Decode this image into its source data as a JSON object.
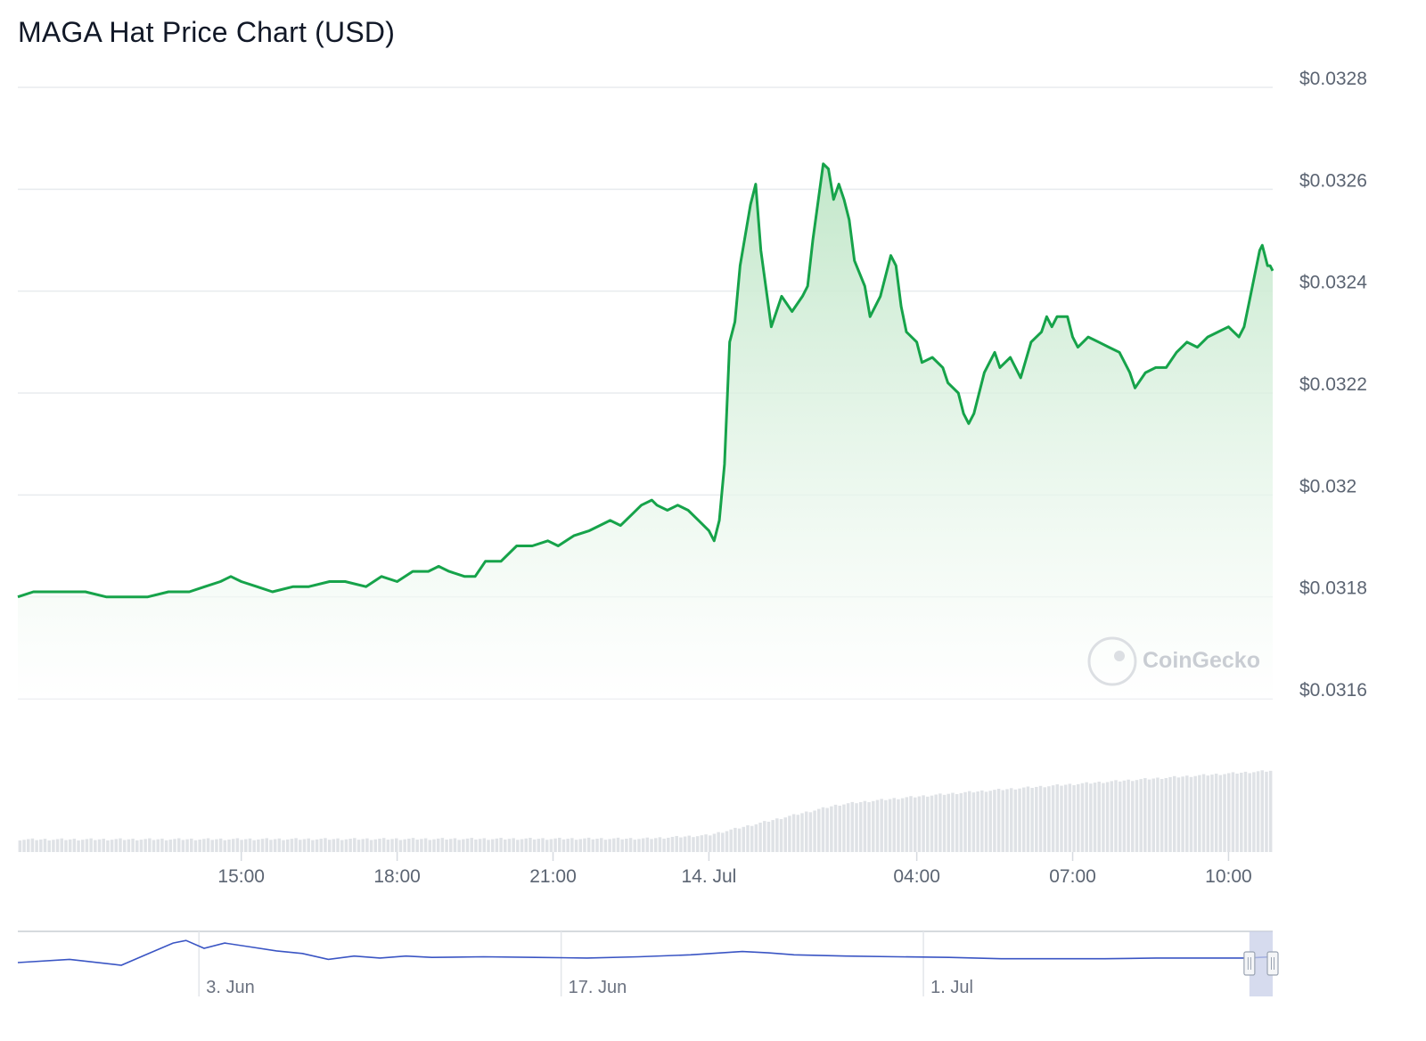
{
  "title": "MAGA Hat Price Chart (USD)",
  "watermark": "CoinGecko",
  "colors": {
    "line": "#16a34a",
    "fill_top": "#bfe6c7",
    "grid": "#e8ebee",
    "volume": "#dfe2e6",
    "navigator_line": "#3a55c4",
    "navigator_handle": "#c8cfe8"
  },
  "chart_data": {
    "type": "area",
    "title": "MAGA Hat Price Chart (USD)",
    "ylabel": "",
    "xlabel": "",
    "ylim": [
      0.0316,
      0.0328
    ],
    "y_tick_labels": [
      "$0.0328",
      "$0.0326",
      "$0.0324",
      "$0.0322",
      "$0.032",
      "$0.0318",
      "$0.0316"
    ],
    "y_ticks": [
      0.0328,
      0.0326,
      0.0324,
      0.0322,
      0.032,
      0.0318,
      0.0316
    ],
    "x_tick_labels": [
      "15:00",
      "18:00",
      "21:00",
      "14. Jul",
      "04:00",
      "07:00",
      "10:00"
    ],
    "x_ticks_hours": [
      15,
      18,
      21,
      24,
      28,
      31,
      34
    ],
    "x_range_hours": [
      10.7,
      34.85
    ],
    "grid": true,
    "series": [
      {
        "values": [
          [
            10.7,
            0.0318
          ],
          [
            11.0,
            0.03181
          ],
          [
            11.3,
            0.03181
          ],
          [
            11.6,
            0.03181
          ],
          [
            12.0,
            0.03181
          ],
          [
            12.4,
            0.0318
          ],
          [
            12.8,
            0.0318
          ],
          [
            13.2,
            0.0318
          ],
          [
            13.6,
            0.03181
          ],
          [
            14.0,
            0.03181
          ],
          [
            14.3,
            0.03182
          ],
          [
            14.6,
            0.03183
          ],
          [
            14.8,
            0.03184
          ],
          [
            15.0,
            0.03183
          ],
          [
            15.3,
            0.03182
          ],
          [
            15.6,
            0.03181
          ],
          [
            16.0,
            0.03182
          ],
          [
            16.3,
            0.03182
          ],
          [
            16.7,
            0.03183
          ],
          [
            17.0,
            0.03183
          ],
          [
            17.4,
            0.03182
          ],
          [
            17.7,
            0.03184
          ],
          [
            18.0,
            0.03183
          ],
          [
            18.3,
            0.03185
          ],
          [
            18.6,
            0.03185
          ],
          [
            18.8,
            0.03186
          ],
          [
            19.0,
            0.03185
          ],
          [
            19.3,
            0.03184
          ],
          [
            19.5,
            0.03184
          ],
          [
            19.7,
            0.03187
          ],
          [
            20.0,
            0.03187
          ],
          [
            20.3,
            0.0319
          ],
          [
            20.6,
            0.0319
          ],
          [
            20.9,
            0.03191
          ],
          [
            21.1,
            0.0319
          ],
          [
            21.4,
            0.03192
          ],
          [
            21.7,
            0.03193
          ],
          [
            21.9,
            0.03194
          ],
          [
            22.1,
            0.03195
          ],
          [
            22.3,
            0.03194
          ],
          [
            22.5,
            0.03196
          ],
          [
            22.7,
            0.03198
          ],
          [
            22.9,
            0.03199
          ],
          [
            23.0,
            0.03198
          ],
          [
            23.2,
            0.03197
          ],
          [
            23.4,
            0.03198
          ],
          [
            23.6,
            0.03197
          ],
          [
            23.8,
            0.03195
          ],
          [
            24.0,
            0.03193
          ],
          [
            24.1,
            0.03191
          ],
          [
            24.2,
            0.03195
          ],
          [
            24.3,
            0.03206
          ],
          [
            24.4,
            0.0323
          ],
          [
            24.5,
            0.03234
          ],
          [
            24.6,
            0.03245
          ],
          [
            24.8,
            0.03257
          ],
          [
            24.9,
            0.03261
          ],
          [
            25.0,
            0.03248
          ],
          [
            25.2,
            0.03233
          ],
          [
            25.4,
            0.03239
          ],
          [
            25.6,
            0.03236
          ],
          [
            25.8,
            0.03239
          ],
          [
            25.9,
            0.03241
          ],
          [
            26.0,
            0.0325
          ],
          [
            26.2,
            0.03265
          ],
          [
            26.3,
            0.03264
          ],
          [
            26.4,
            0.03258
          ],
          [
            26.5,
            0.03261
          ],
          [
            26.6,
            0.03258
          ],
          [
            26.7,
            0.03254
          ],
          [
            26.8,
            0.03246
          ],
          [
            27.0,
            0.03241
          ],
          [
            27.1,
            0.03235
          ],
          [
            27.3,
            0.03239
          ],
          [
            27.5,
            0.03247
          ],
          [
            27.6,
            0.03245
          ],
          [
            27.7,
            0.03237
          ],
          [
            27.8,
            0.03232
          ],
          [
            28.0,
            0.0323
          ],
          [
            28.1,
            0.03226
          ],
          [
            28.3,
            0.03227
          ],
          [
            28.5,
            0.03225
          ],
          [
            28.6,
            0.03222
          ],
          [
            28.8,
            0.0322
          ],
          [
            28.9,
            0.03216
          ],
          [
            29.0,
            0.03214
          ],
          [
            29.1,
            0.03216
          ],
          [
            29.3,
            0.03224
          ],
          [
            29.5,
            0.03228
          ],
          [
            29.6,
            0.03225
          ],
          [
            29.8,
            0.03227
          ],
          [
            30.0,
            0.03223
          ],
          [
            30.2,
            0.0323
          ],
          [
            30.4,
            0.03232
          ],
          [
            30.5,
            0.03235
          ],
          [
            30.6,
            0.03233
          ],
          [
            30.7,
            0.03235
          ],
          [
            30.9,
            0.03235
          ],
          [
            31.0,
            0.03231
          ],
          [
            31.1,
            0.03229
          ],
          [
            31.3,
            0.03231
          ],
          [
            31.5,
            0.0323
          ],
          [
            31.7,
            0.03229
          ],
          [
            31.9,
            0.03228
          ],
          [
            32.1,
            0.03224
          ],
          [
            32.2,
            0.03221
          ],
          [
            32.4,
            0.03224
          ],
          [
            32.6,
            0.03225
          ],
          [
            32.8,
            0.03225
          ],
          [
            33.0,
            0.03228
          ],
          [
            33.2,
            0.0323
          ],
          [
            33.4,
            0.03229
          ],
          [
            33.6,
            0.03231
          ],
          [
            33.8,
            0.03232
          ],
          [
            34.0,
            0.03233
          ],
          [
            34.2,
            0.03231
          ],
          [
            34.3,
            0.03233
          ],
          [
            34.4,
            0.03238
          ],
          [
            34.5,
            0.03243
          ],
          [
            34.6,
            0.03248
          ],
          [
            34.65,
            0.03249
          ],
          [
            34.7,
            0.03247
          ],
          [
            34.75,
            0.03245
          ],
          [
            34.8,
            0.03245
          ],
          [
            34.85,
            0.03244
          ]
        ]
      }
    ],
    "volume": {
      "bar_count": 300,
      "relative_values_start": 0.15,
      "relative_values_end": 0.97
    },
    "navigator": {
      "x_tick_labels": [
        "3. Jun",
        "17. Jun",
        "1. Jul"
      ],
      "x_ticks_days": [
        3,
        17,
        31
      ],
      "x_range_days": [
        -4,
        44.5
      ],
      "values": [
        [
          -4,
          0.52
        ],
        [
          -2,
          0.57
        ],
        [
          0,
          0.48
        ],
        [
          1,
          0.65
        ],
        [
          2,
          0.82
        ],
        [
          2.5,
          0.86
        ],
        [
          3.2,
          0.74
        ],
        [
          4,
          0.82
        ],
        [
          5,
          0.76
        ],
        [
          6,
          0.7
        ],
        [
          7,
          0.66
        ],
        [
          8,
          0.57
        ],
        [
          9,
          0.62
        ],
        [
          10,
          0.59
        ],
        [
          11,
          0.62
        ],
        [
          12,
          0.6
        ],
        [
          14,
          0.61
        ],
        [
          16,
          0.6
        ],
        [
          18,
          0.59
        ],
        [
          20,
          0.61
        ],
        [
          22,
          0.64
        ],
        [
          24,
          0.69
        ],
        [
          25,
          0.67
        ],
        [
          26,
          0.64
        ],
        [
          28,
          0.62
        ],
        [
          30,
          0.61
        ],
        [
          32,
          0.6
        ],
        [
          34,
          0.58
        ],
        [
          36,
          0.58
        ],
        [
          38,
          0.58
        ],
        [
          40,
          0.59
        ],
        [
          42,
          0.59
        ],
        [
          43.5,
          0.59
        ],
        [
          44,
          0.6
        ],
        [
          44.5,
          0.61
        ]
      ],
      "selection_days": [
        43.6,
        44.5
      ]
    }
  }
}
